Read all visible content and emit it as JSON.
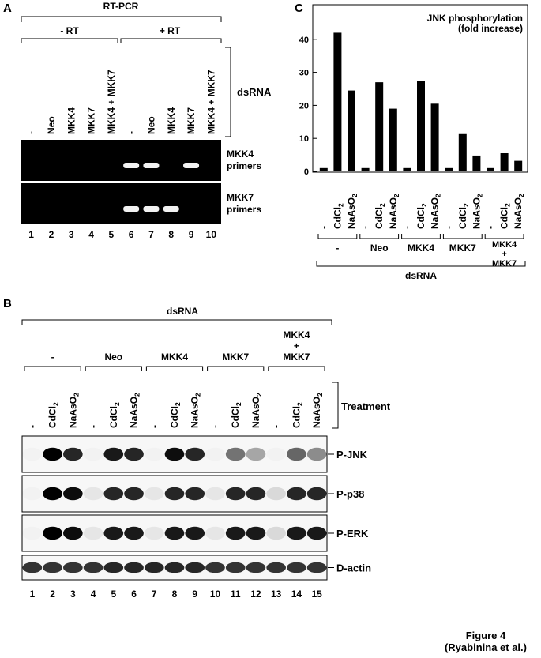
{
  "figure": {
    "caption_line1": "Figure 4",
    "caption_line2": "(Ryabinina et al.)"
  },
  "panel_a": {
    "letter": "A",
    "title": "RT-PCR",
    "minus_rt": "- RT",
    "plus_rt": "+ RT",
    "dsrna_label": "dsRNA",
    "lane_labels": [
      "-",
      "Neo",
      "MKK4",
      "MKK7",
      "MKK4 + MKK7",
      "-",
      "Neo",
      "MKK4",
      "MKK7",
      "MKK4 + MKK7"
    ],
    "lane_numbers": [
      "1",
      "2",
      "3",
      "4",
      "5",
      "6",
      "7",
      "8",
      "9",
      "10"
    ],
    "gels": [
      {
        "label_line1": "MKK4",
        "label_line2": "primers",
        "band_lanes": [
          6,
          7,
          9
        ]
      },
      {
        "label_line1": "MKK7",
        "label_line2": "primers",
        "band_lanes": [
          6,
          7,
          8
        ]
      }
    ]
  },
  "panel_b": {
    "letter": "B",
    "dsrna_label": "dsRNA",
    "groups": [
      "-",
      "Neo",
      "MKK4",
      "MKK7"
    ],
    "last_group": [
      "MKK4",
      "+",
      "MKK7"
    ],
    "treatment_label": "Treatment",
    "treatments": {
      "minus": "-",
      "cd": "CdCl",
      "cd_sub": "2",
      "na": "NaAsO",
      "na_sub": "2"
    },
    "lane_numbers": [
      "1",
      "2",
      "3",
      "4",
      "5",
      "6",
      "7",
      "8",
      "9",
      "10",
      "11",
      "12",
      "13",
      "14",
      "15"
    ],
    "blots": [
      {
        "label": "P-JNK",
        "intensity": [
          0.05,
          1.0,
          0.85,
          0.05,
          0.9,
          0.85,
          0.05,
          0.95,
          0.85,
          0.05,
          0.55,
          0.35,
          0.05,
          0.6,
          0.45
        ]
      },
      {
        "label": "P-p38",
        "intensity": [
          0.05,
          1.0,
          0.95,
          0.1,
          0.85,
          0.85,
          0.1,
          0.85,
          0.85,
          0.1,
          0.85,
          0.85,
          0.15,
          0.85,
          0.85
        ]
      },
      {
        "label": "P-ERK",
        "intensity": [
          0.05,
          1.0,
          0.95,
          0.1,
          0.9,
          0.9,
          0.1,
          0.9,
          0.9,
          0.1,
          0.9,
          0.9,
          0.15,
          0.9,
          0.9
        ]
      },
      {
        "label": "D-actin",
        "intensity": [
          0.8,
          0.8,
          0.8,
          0.8,
          0.85,
          0.85,
          0.85,
          0.85,
          0.85,
          0.8,
          0.8,
          0.8,
          0.8,
          0.8,
          0.8
        ]
      }
    ]
  },
  "panel_c": {
    "letter": "C",
    "title_line1": "JNK phosphorylation",
    "title_line2": "(fold increase)",
    "dsrna_label": "dsRNA",
    "groups": [
      "-",
      "Neo",
      "MKK4",
      "MKK7"
    ],
    "last_group": [
      "MKK4",
      "+",
      "MKK7"
    ],
    "treatments": {
      "minus": "-",
      "cd": "CdCl",
      "cd_sub": "2",
      "na": "NaAsO",
      "na_sub": "2"
    }
  },
  "chart_data": {
    "type": "bar",
    "title": "JNK phosphorylation (fold increase)",
    "xlabel": "dsRNA",
    "ylabel": "",
    "groups": [
      "-",
      "Neo",
      "MKK4",
      "MKK7",
      "MKK4 + MKK7"
    ],
    "treatments": [
      "-",
      "CdCl2",
      "NaAsO2"
    ],
    "values": [
      1,
      42,
      24.5,
      1,
      27,
      19,
      1,
      27.3,
      20.5,
      1,
      11.3,
      4.8,
      1,
      5.5,
      3.2
    ],
    "yticks": [
      0,
      10,
      20,
      30,
      40
    ],
    "ylim": [
      0,
      50
    ],
    "grid": false
  }
}
